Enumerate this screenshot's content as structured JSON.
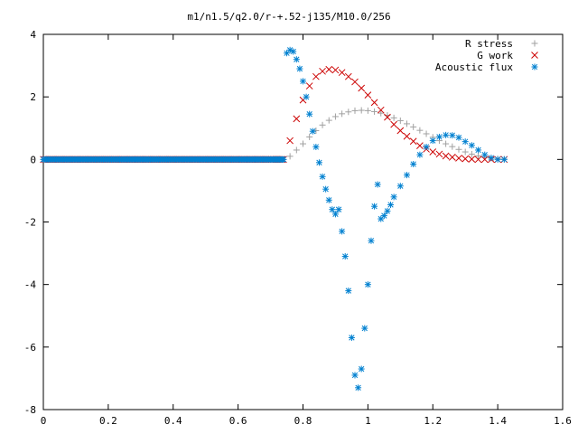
{
  "chart_data": {
    "type": "scatter",
    "title": "m1/n1.5/q2.0/r-+.52-j135/M10.0/256",
    "xlabel": "",
    "ylabel": "",
    "xlim": [
      0,
      1.6
    ],
    "ylim": [
      -8,
      4
    ],
    "x_ticks": [
      "0",
      "0.2",
      "0.4",
      "0.6",
      "0.8",
      "1",
      "1.2",
      "1.4",
      "1.6"
    ],
    "y_ticks": [
      "4",
      "2",
      "0",
      "-2",
      "-4",
      "-6",
      "-8"
    ],
    "legend_position": "top-right",
    "grid": false,
    "series": [
      {
        "name": "R stress",
        "marker": "plus",
        "color": "#a0a0a0",
        "x": [
          0.0,
          0.05,
          0.1,
          0.15,
          0.2,
          0.25,
          0.3,
          0.35,
          0.4,
          0.45,
          0.5,
          0.55,
          0.6,
          0.65,
          0.7,
          0.74,
          0.76,
          0.78,
          0.8,
          0.82,
          0.84,
          0.86,
          0.88,
          0.9,
          0.92,
          0.94,
          0.96,
          0.98,
          1.0,
          1.02,
          1.04,
          1.06,
          1.08,
          1.1,
          1.12,
          1.14,
          1.16,
          1.18,
          1.2,
          1.22,
          1.24,
          1.26,
          1.28,
          1.3,
          1.32,
          1.34,
          1.36,
          1.38,
          1.4,
          1.42
        ],
        "y": [
          0,
          0,
          0,
          0,
          0,
          0,
          0,
          0,
          0,
          0,
          0,
          0,
          0,
          0,
          0,
          0,
          0.1,
          0.3,
          0.5,
          0.72,
          0.92,
          1.1,
          1.25,
          1.37,
          1.46,
          1.52,
          1.56,
          1.57,
          1.56,
          1.53,
          1.48,
          1.41,
          1.33,
          1.24,
          1.14,
          1.04,
          0.93,
          0.82,
          0.71,
          0.6,
          0.5,
          0.41,
          0.32,
          0.24,
          0.17,
          0.11,
          0.07,
          0.04,
          0.02,
          0.01
        ]
      },
      {
        "name": "G work",
        "marker": "cross",
        "color": "#cc0000",
        "x": [
          0.0,
          0.05,
          0.1,
          0.15,
          0.2,
          0.25,
          0.3,
          0.35,
          0.4,
          0.45,
          0.5,
          0.55,
          0.6,
          0.65,
          0.7,
          0.74,
          0.76,
          0.78,
          0.8,
          0.82,
          0.84,
          0.86,
          0.88,
          0.9,
          0.92,
          0.94,
          0.96,
          0.98,
          1.0,
          1.02,
          1.04,
          1.06,
          1.08,
          1.1,
          1.12,
          1.14,
          1.16,
          1.18,
          1.2,
          1.22,
          1.24,
          1.26,
          1.28,
          1.3,
          1.32,
          1.34,
          1.36,
          1.38,
          1.4,
          1.42
        ],
        "y": [
          0,
          0,
          0,
          0,
          0,
          0,
          0,
          0,
          0,
          0,
          0,
          0,
          0,
          0,
          0,
          0,
          0.6,
          1.3,
          1.9,
          2.35,
          2.65,
          2.82,
          2.88,
          2.86,
          2.78,
          2.65,
          2.48,
          2.28,
          2.06,
          1.82,
          1.58,
          1.35,
          1.12,
          0.92,
          0.74,
          0.58,
          0.44,
          0.33,
          0.24,
          0.17,
          0.11,
          0.07,
          0.04,
          0.02,
          0.01,
          0.0,
          0.0,
          0.0,
          0.0,
          0.0
        ]
      },
      {
        "name": "Acoustic flux",
        "marker": "star",
        "color": "#0080d0",
        "x": [
          0.0,
          0.05,
          0.1,
          0.15,
          0.2,
          0.25,
          0.3,
          0.35,
          0.4,
          0.45,
          0.5,
          0.55,
          0.6,
          0.65,
          0.7,
          0.74,
          0.75,
          0.76,
          0.77,
          0.78,
          0.79,
          0.8,
          0.81,
          0.82,
          0.83,
          0.84,
          0.85,
          0.86,
          0.87,
          0.88,
          0.89,
          0.9,
          0.91,
          0.92,
          0.93,
          0.94,
          0.95,
          0.96,
          0.97,
          0.98,
          0.99,
          1.0,
          1.01,
          1.02,
          1.03,
          1.04,
          1.05,
          1.06,
          1.07,
          1.08,
          1.1,
          1.12,
          1.14,
          1.16,
          1.18,
          1.2,
          1.22,
          1.24,
          1.26,
          1.28,
          1.3,
          1.32,
          1.34,
          1.36,
          1.38,
          1.4,
          1.42
        ],
        "y": [
          0,
          0,
          0,
          0,
          0,
          0,
          0,
          0,
          0,
          0,
          0,
          0,
          0,
          0,
          0,
          0,
          3.4,
          3.5,
          3.45,
          3.2,
          2.9,
          2.5,
          2.0,
          1.45,
          0.9,
          0.4,
          -0.1,
          -0.55,
          -0.95,
          -1.3,
          -1.6,
          -1.75,
          -1.6,
          -2.3,
          -3.1,
          -4.2,
          -5.7,
          -6.9,
          -7.3,
          -6.7,
          -5.4,
          -4.0,
          -2.6,
          -1.5,
          -0.8,
          -1.9,
          -1.8,
          -1.65,
          -1.45,
          -1.2,
          -0.85,
          -0.5,
          -0.15,
          0.15,
          0.4,
          0.6,
          0.72,
          0.78,
          0.77,
          0.7,
          0.57,
          0.45,
          0.3,
          0.15,
          0.05,
          0.0,
          0.0
        ]
      }
    ]
  }
}
